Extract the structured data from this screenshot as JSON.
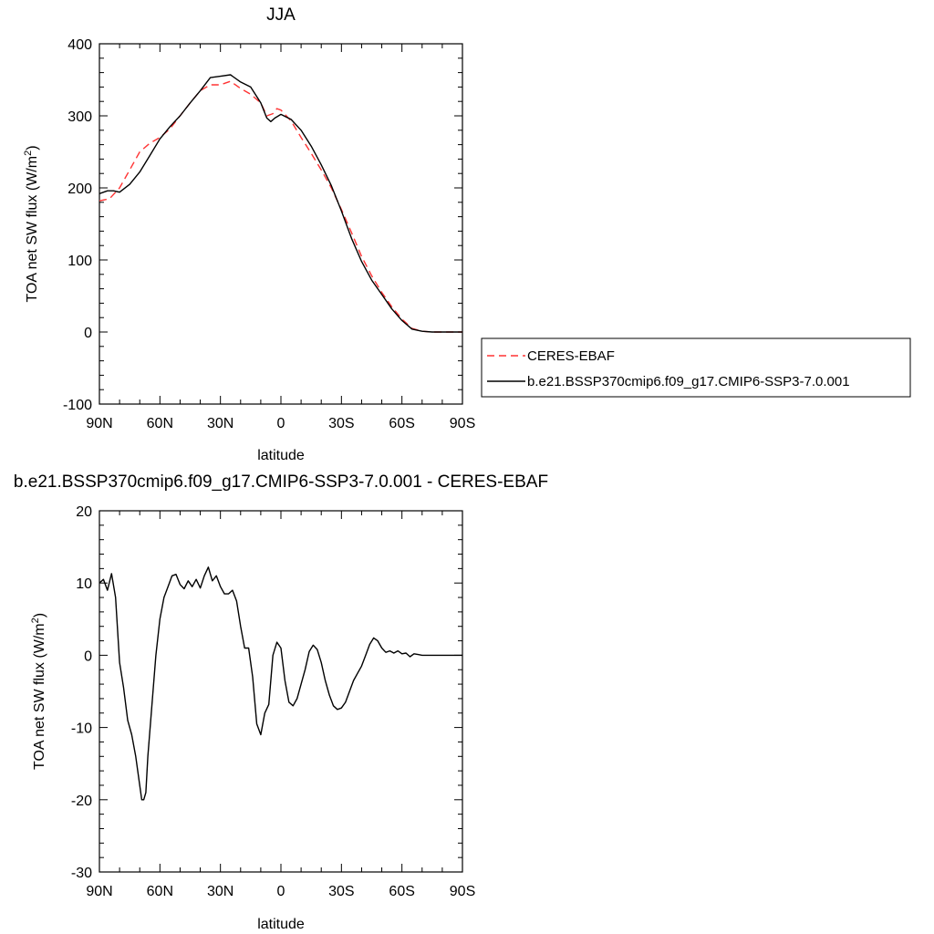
{
  "chart_data": [
    {
      "type": "line",
      "title": "JJA",
      "xlabel": "latitude",
      "ylabel": "TOA net SW flux (W/m",
      "ylabel_sup": "2",
      "ylabel_close": ")",
      "xlim": [
        90,
        -90
      ],
      "ylim": [
        -100,
        400
      ],
      "x_ticks": [
        {
          "value": 90,
          "label": "90N"
        },
        {
          "value": 60,
          "label": "60N"
        },
        {
          "value": 30,
          "label": "30N"
        },
        {
          "value": 0,
          "label": "0"
        },
        {
          "value": -30,
          "label": "30S"
        },
        {
          "value": -60,
          "label": "60S"
        },
        {
          "value": -90,
          "label": "90S"
        }
      ],
      "y_ticks": [
        -100,
        0,
        100,
        200,
        300,
        400
      ],
      "legend": {
        "position": "right"
      },
      "series": [
        {
          "name": "CERES-EBAF",
          "color": "#ff3333",
          "dash": "dashed",
          "x": [
            90,
            85,
            80,
            75,
            70,
            65,
            60,
            55,
            50,
            45,
            40,
            35,
            30,
            25,
            20,
            15,
            10,
            7,
            4,
            2,
            0,
            -5,
            -10,
            -15,
            -20,
            -25,
            -30,
            -35,
            -40,
            -45,
            -50,
            -55,
            -60,
            -65,
            -70,
            -75,
            -80,
            -85,
            -90
          ],
          "y": [
            182,
            185,
            200,
            225,
            250,
            262,
            270,
            282,
            300,
            318,
            335,
            343,
            343,
            348,
            338,
            330,
            318,
            300,
            303,
            310,
            308,
            293,
            270,
            248,
            225,
            200,
            170,
            138,
            105,
            78,
            55,
            35,
            18,
            5,
            1,
            0,
            0,
            0,
            0
          ]
        },
        {
          "name": "b.e21.BSSP370cmip6.f09_g17.CMIP6-SSP3-7.0.001",
          "color": "#000000",
          "dash": "solid",
          "x": [
            90,
            86,
            83,
            80,
            75,
            70,
            65,
            60,
            55,
            50,
            45,
            40,
            35,
            30,
            25,
            20,
            15,
            10,
            7,
            5,
            3,
            0,
            -5,
            -10,
            -15,
            -20,
            -25,
            -30,
            -35,
            -40,
            -45,
            -50,
            -55,
            -60,
            -65,
            -70,
            -75,
            -80,
            -85,
            -90
          ],
          "y": [
            192,
            196,
            196,
            194,
            205,
            222,
            245,
            268,
            285,
            300,
            318,
            335,
            353,
            355,
            357,
            347,
            340,
            318,
            297,
            292,
            297,
            302,
            295,
            280,
            258,
            232,
            203,
            168,
            130,
            98,
            72,
            52,
            32,
            16,
            4,
            1,
            0,
            0,
            0,
            0
          ]
        }
      ]
    },
    {
      "type": "line",
      "title": "b.e21.BSSP370cmip6.f09_g17.CMIP6-SSP3-7.0.001 - CERES-EBAF",
      "xlabel": "latitude",
      "ylabel": "TOA net SW flux (W/m",
      "ylabel_sup": "2",
      "ylabel_close": ")",
      "xlim": [
        90,
        -90
      ],
      "ylim": [
        -30,
        20
      ],
      "x_ticks": [
        {
          "value": 90,
          "label": "90N"
        },
        {
          "value": 60,
          "label": "60N"
        },
        {
          "value": 30,
          "label": "30N"
        },
        {
          "value": 0,
          "label": "0"
        },
        {
          "value": -30,
          "label": "30S"
        },
        {
          "value": -60,
          "label": "60S"
        },
        {
          "value": -90,
          "label": "90S"
        }
      ],
      "y_ticks": [
        -30,
        -20,
        -10,
        0,
        10,
        20
      ],
      "series": [
        {
          "color": "#000000",
          "dash": "solid",
          "x": [
            90,
            88,
            86,
            84,
            82,
            80,
            78,
            76,
            74,
            72,
            70,
            69,
            68,
            67,
            66,
            64,
            62,
            60,
            58,
            56,
            54,
            52,
            50,
            48,
            46,
            44,
            42,
            40,
            38,
            36,
            34,
            32,
            30,
            28,
            26,
            24,
            22,
            20,
            18,
            16,
            14,
            12,
            10,
            8,
            6,
            4,
            2,
            0,
            -2,
            -4,
            -6,
            -8,
            -10,
            -12,
            -14,
            -16,
            -18,
            -20,
            -22,
            -24,
            -26,
            -28,
            -30,
            -32,
            -34,
            -36,
            -38,
            -40,
            -42,
            -44,
            -46,
            -48,
            -50,
            -52,
            -54,
            -56,
            -58,
            -60,
            -62,
            -64,
            -66,
            -68,
            -70,
            -72,
            -74,
            -76,
            -78,
            -80,
            -82,
            -84,
            -86,
            -88,
            -90
          ],
          "y": [
            10,
            10.5,
            9,
            11.3,
            8,
            -1,
            -4.5,
            -9,
            -11,
            -14,
            -18,
            -20,
            -20,
            -19,
            -14,
            -7,
            0,
            5,
            8,
            9.5,
            11,
            11.2,
            9.8,
            9.2,
            10.3,
            9.5,
            10.5,
            9.3,
            11,
            12.2,
            10.3,
            11.0,
            9.5,
            8.5,
            8.5,
            9.0,
            7.5,
            4,
            1,
            1,
            -3,
            -9.5,
            -11,
            -8,
            -6.8,
            0,
            1.8,
            1,
            -3.5,
            -6.5,
            -7,
            -6,
            -4,
            -2,
            0.5,
            1.4,
            0.8,
            -1,
            -3.5,
            -5.5,
            -7,
            -7.5,
            -7.3,
            -6.5,
            -5,
            -3.5,
            -2.5,
            -1.5,
            0,
            1.5,
            2.4,
            2,
            1,
            0.4,
            0.6,
            0.3,
            0.6,
            0.2,
            0.3,
            -0.2,
            0.2,
            0.1,
            0,
            0,
            0,
            0,
            0,
            0,
            0,
            0,
            0,
            0,
            0
          ]
        }
      ]
    }
  ]
}
